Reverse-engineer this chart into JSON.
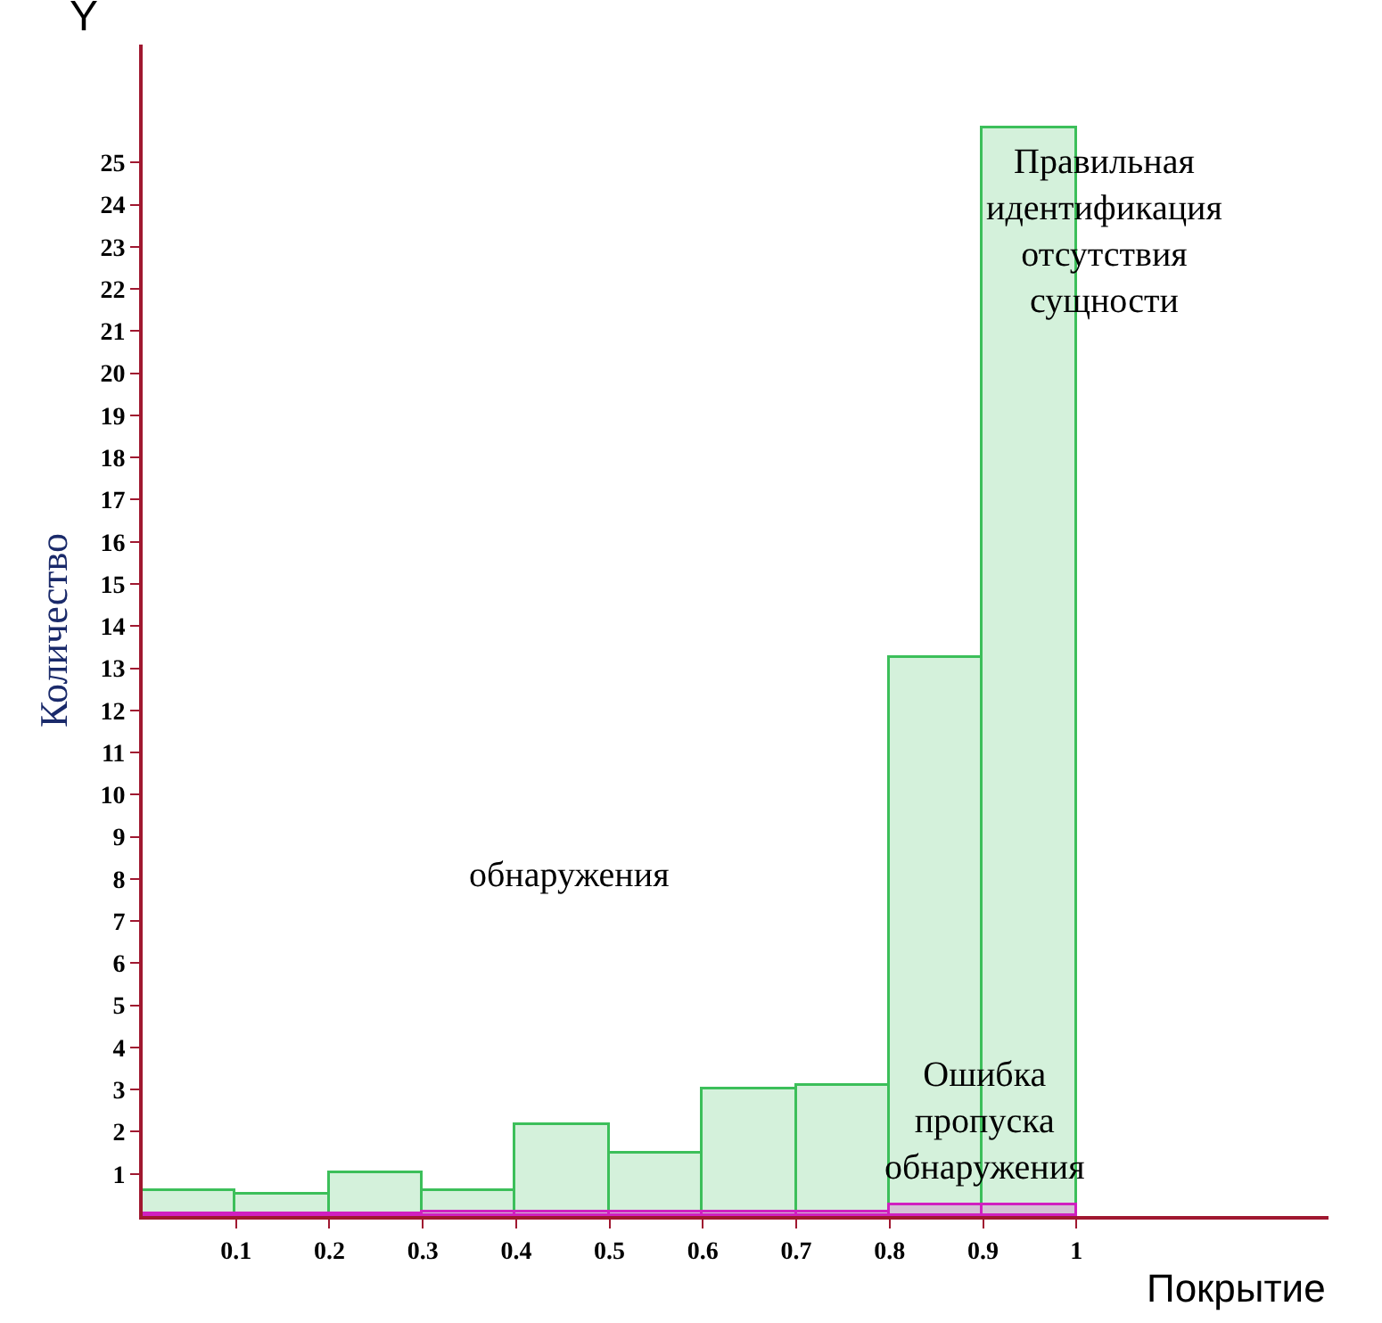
{
  "chart_data": {
    "type": "histogram",
    "xlabel": "Покрытие",
    "ylabel": "Количество",
    "bins": [
      0,
      0.1,
      0.2,
      0.3,
      0.4,
      0.5,
      0.6,
      0.7,
      0.8,
      0.9,
      1.0
    ],
    "series": [
      {
        "color": "#3cbf5a",
        "values": [
          0.6,
          0.5,
          1.0,
          0.6,
          2.15,
          1.5,
          3.0,
          3.1,
          13.25,
          25.8
        ]
      },
      {
        "color": "#d020c0",
        "values": [
          0.05,
          0.05,
          0.05,
          0.1,
          0.1,
          0.1,
          0.1,
          0.1,
          0.25,
          0.25
        ]
      }
    ],
    "xlim": [
      0,
      1.27
    ],
    "ylim": [
      0,
      27.8
    ],
    "xticks": [
      0.1,
      0.2,
      0.3,
      0.4,
      0.5,
      0.6,
      0.7,
      0.8,
      0.9,
      1
    ],
    "yticks": [
      1,
      2,
      3,
      4,
      5,
      6,
      7,
      8,
      9,
      10,
      11,
      12,
      13,
      14,
      15,
      16,
      17,
      18,
      19,
      20,
      21,
      22,
      23,
      24,
      25
    ],
    "annotations": [
      "Y",
      "Правильная\nидентификация\nотсутствия\nсущности",
      "обнаружения",
      "Ошибка\nпропуска\nобнаружения"
    ]
  }
}
